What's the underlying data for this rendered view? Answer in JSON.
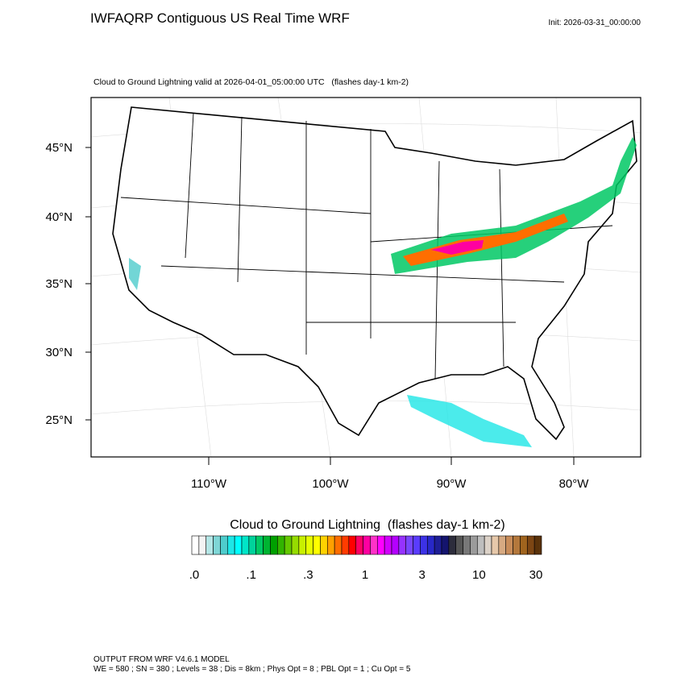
{
  "header": {
    "title": "IWFAQRP Contiguous US Real Time WRF",
    "init": "Init: 2026-03-31_00:00:00"
  },
  "map": {
    "subtitle": "Cloud to Ground Lightning valid at 2026-04-01_05:00:00 UTC   (flashes day-1 km-2)",
    "lat_labels": [
      "45°N",
      "40°N",
      "35°N",
      "30°N",
      "25°N"
    ],
    "lon_labels": [
      "110°W",
      "100°W",
      "90°W",
      "80°W"
    ]
  },
  "colorbar": {
    "title": "Cloud to Ground Lightning  (flashes day-1 km-2)",
    "labels": [
      ".0",
      ".1",
      ".3",
      "1",
      "3",
      "10",
      "30"
    ],
    "colors": [
      "#ffffff",
      "#f4f4f4",
      "#b4e6e6",
      "#7fd6d6",
      "#4fcccc",
      "#1ee6e6",
      "#00ffff",
      "#00e6c8",
      "#00d29b",
      "#00c864",
      "#00b432",
      "#00a000",
      "#32b400",
      "#64c800",
      "#96dc00",
      "#c8f000",
      "#e6ff00",
      "#ffff00",
      "#ffd200",
      "#ffa000",
      "#ff6e00",
      "#ff3c00",
      "#ff0000",
      "#ff0064",
      "#ff00a0",
      "#ff32c8",
      "#ff00ff",
      "#d200ff",
      "#b400ff",
      "#9632ff",
      "#7846ff",
      "#5a3cff",
      "#3c32e6",
      "#2828c8",
      "#1e1e96",
      "#14146e",
      "#2d2d3c",
      "#555555",
      "#787878",
      "#9b9b9b",
      "#bebebe",
      "#dcd2c8",
      "#e6c8aa",
      "#d7aa82",
      "#c88c5a",
      "#b4783c",
      "#a0641e",
      "#7d4614",
      "#5a320a"
    ]
  },
  "footer": {
    "line1": "OUTPUT FROM WRF V4.6.1 MODEL",
    "line2": "WE = 580 ; SN = 380 ; Levels = 38 ; Dis = 8km ; Phys Opt = 8 ; PBL Opt = 1 ; Cu Opt = 5"
  }
}
